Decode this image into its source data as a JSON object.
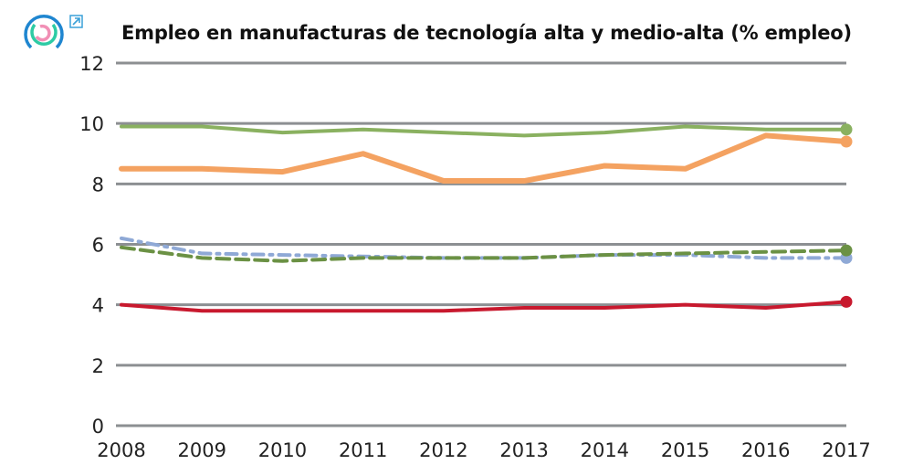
{
  "chart_data": {
    "type": "line",
    "title": "Empleo en manufacturas de tecnología alta y medio-alta (% empleo)",
    "xlabel": "",
    "ylabel": "",
    "ylim": [
      0,
      12
    ],
    "yticks": [
      "0",
      "2",
      "4",
      "6",
      "8",
      "10",
      "12"
    ],
    "x": [
      "2008",
      "2009",
      "2010",
      "2011",
      "2012",
      "2013",
      "2014",
      "2015",
      "2016",
      "2017"
    ],
    "grid": true,
    "series": [
      {
        "color": "#8ab160",
        "style": "solid",
        "values": [
          9.9,
          9.9,
          9.7,
          9.8,
          9.7,
          9.6,
          9.7,
          9.9,
          9.8,
          9.8
        ]
      },
      {
        "color": "#f4a261",
        "style": "solid",
        "values": [
          8.5,
          8.5,
          8.4,
          9.0,
          8.1,
          8.1,
          8.6,
          8.5,
          9.6,
          9.4
        ]
      },
      {
        "color": "#8fa9d6",
        "style": "dashdot",
        "values": [
          6.2,
          5.7,
          5.65,
          5.6,
          5.55,
          5.55,
          5.65,
          5.65,
          5.55,
          5.55
        ]
      },
      {
        "color": "#6b9144",
        "style": "dashed",
        "values": [
          5.9,
          5.55,
          5.45,
          5.55,
          5.55,
          5.55,
          5.65,
          5.7,
          5.75,
          5.8
        ]
      },
      {
        "color": "#c8192e",
        "style": "solid",
        "values": [
          4.0,
          3.8,
          3.8,
          3.8,
          3.8,
          3.9,
          3.9,
          4.0,
          3.9,
          4.1
        ]
      }
    ]
  },
  "icons": {
    "logo": "circular-logo-icon",
    "external": "external-link-icon"
  }
}
